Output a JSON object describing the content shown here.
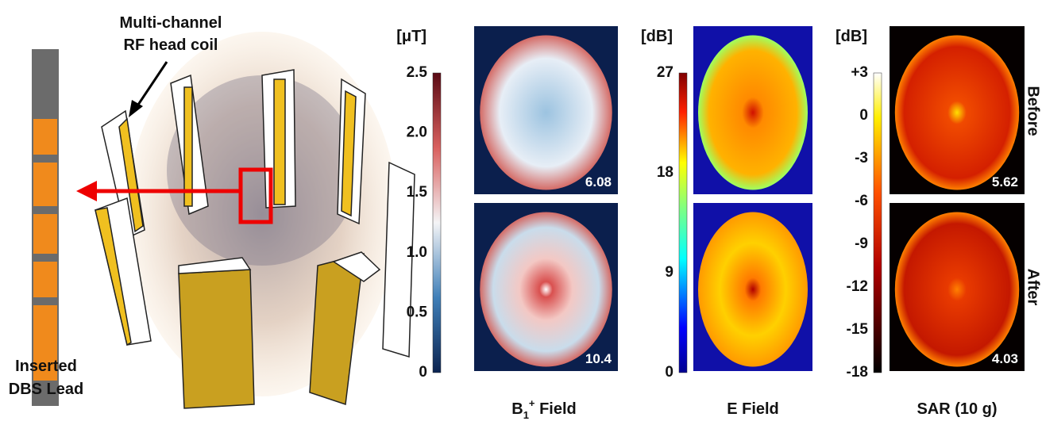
{
  "illustration": {
    "coil_label": [
      "Multi-channel",
      "RF head coil"
    ],
    "lead_label": [
      "Inserted",
      "DBS Lead"
    ]
  },
  "panels": [
    {
      "unit": "[μT]",
      "ticks": [
        "2.5",
        "2.0",
        "1.5",
        "1.0",
        "0.5",
        "0"
      ],
      "map_values": [
        "6.08",
        "10.4"
      ],
      "caption": {
        "base": "B",
        "sub": "1",
        "sup": "+",
        "rest": " Field"
      }
    },
    {
      "unit": "[dB]",
      "ticks": [
        "27",
        "18",
        "9",
        "0"
      ],
      "map_values": [],
      "caption": {
        "base": "E Field"
      }
    },
    {
      "unit": "[dB]",
      "ticks": [
        "+3",
        "0",
        "-3",
        "-6",
        "-9",
        "-12",
        "-15",
        "-18"
      ],
      "map_values": [
        "5.62",
        "4.03"
      ],
      "caption": {
        "base": "SAR (10 g)"
      }
    }
  ],
  "rows": [
    "Before",
    "After"
  ]
}
